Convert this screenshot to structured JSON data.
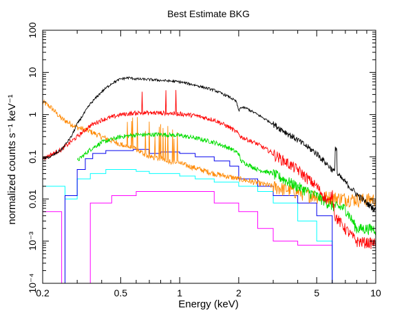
{
  "chart_data": {
    "type": "line",
    "title": "Best Estimate BKG",
    "xlabel": "Energy (keV)",
    "ylabel": "normalized counts s⁻¹ keV⁻¹",
    "xscale": "log",
    "yscale": "log",
    "xlim": [
      0.2,
      10
    ],
    "ylim": [
      0.0001,
      100
    ],
    "grid": false,
    "legend": "none",
    "x_ticks": [
      {
        "value": 0.2,
        "label": "0.2"
      },
      {
        "value": 0.5,
        "label": "0.5"
      },
      {
        "value": 1,
        "label": "1"
      },
      {
        "value": 2,
        "label": "2"
      },
      {
        "value": 5,
        "label": "5"
      },
      {
        "value": 10,
        "label": "10"
      }
    ],
    "y_ticks": [
      {
        "value": 0.0001,
        "label": "10⁻⁴"
      },
      {
        "value": 0.001,
        "label": "10⁻³"
      },
      {
        "value": 0.01,
        "label": "0.01"
      },
      {
        "value": 0.1,
        "label": "0.1"
      },
      {
        "value": 1,
        "label": "1"
      },
      {
        "value": 10,
        "label": "10"
      },
      {
        "value": 100,
        "label": "100"
      }
    ],
    "series": [
      {
        "color": "#000000",
        "style": "noisy",
        "x": [
          0.2,
          0.22,
          0.25,
          0.28,
          0.3,
          0.35,
          0.4,
          0.45,
          0.5,
          0.55,
          0.6,
          0.7,
          0.8,
          1.0,
          1.2,
          1.5,
          1.8,
          1.95,
          2.0,
          2.05,
          2.2,
          2.5,
          3.0,
          4.0,
          5.0,
          6.0,
          6.5,
          7.0,
          8.0,
          9.0,
          10.0
        ],
        "y": [
          0.09,
          0.1,
          0.15,
          0.3,
          0.6,
          1.8,
          3.5,
          5.5,
          7,
          7.5,
          7,
          6.8,
          6.5,
          6,
          5,
          3.8,
          2.6,
          2.0,
          1.2,
          1.5,
          1.4,
          1.0,
          0.6,
          0.25,
          0.12,
          0.05,
          0.035,
          0.025,
          0.013,
          0.008,
          0.0055
        ]
      },
      {
        "color": "#ff0000",
        "style": "noisy",
        "x": [
          0.2,
          0.25,
          0.3,
          0.35,
          0.4,
          0.5,
          0.6,
          0.8,
          1.0,
          1.2,
          1.5,
          1.8,
          2.0,
          2.05,
          2.5,
          3.0,
          4.0,
          5.0,
          5.8,
          6.0,
          6.2,
          7.0,
          8.0,
          10.0
        ],
        "y": [
          0.09,
          0.15,
          0.3,
          0.55,
          0.75,
          1.0,
          1.1,
          1.1,
          1.05,
          0.95,
          0.75,
          0.5,
          0.35,
          0.3,
          0.2,
          0.12,
          0.05,
          0.02,
          0.008,
          0.015,
          0.004,
          0.002,
          0.001,
          0.0009
        ]
      },
      {
        "color": "#00dd00",
        "style": "noisy",
        "x": [
          0.3,
          0.35,
          0.4,
          0.5,
          0.6,
          0.8,
          1.0,
          1.2,
          1.5,
          1.8,
          2.0,
          2.05,
          2.5,
          3.0,
          4.0,
          5.0,
          6.0,
          7.0,
          8.0,
          10.0
        ],
        "y": [
          0.08,
          0.15,
          0.22,
          0.3,
          0.33,
          0.34,
          0.32,
          0.28,
          0.22,
          0.16,
          0.12,
          0.08,
          0.05,
          0.04,
          0.02,
          0.012,
          0.007,
          0.006,
          0.002,
          0.002
        ]
      },
      {
        "color": "#0000ee",
        "style": "step",
        "x": [
          0.2,
          0.25,
          0.26,
          0.3,
          0.33,
          0.36,
          0.42,
          0.5,
          0.58,
          0.7,
          0.8,
          1.0,
          1.2,
          1.5,
          1.8,
          2.0,
          2.5,
          3.0,
          4.0,
          5.0,
          6.0,
          8.0,
          10.0
        ],
        "y": [
          0.0001,
          0.0001,
          0.012,
          0.05,
          0.09,
          0.12,
          0.14,
          0.14,
          0.15,
          0.12,
          0.13,
          0.12,
          0.1,
          0.08,
          0.06,
          0.03,
          0.02,
          0.012,
          0.008,
          0.004,
          0.0001,
          0.0001,
          0.0001
        ]
      },
      {
        "color": "#00ffff",
        "style": "step",
        "x": [
          0.2,
          0.25,
          0.26,
          0.3,
          0.35,
          0.42,
          0.5,
          0.6,
          0.7,
          0.8,
          1.0,
          1.2,
          1.5,
          2.0,
          2.5,
          3.0,
          4.0,
          5.0,
          6.0,
          8.0,
          10.0
        ],
        "y": [
          0.02,
          0.02,
          0.01,
          0.03,
          0.04,
          0.05,
          0.05,
          0.045,
          0.04,
          0.04,
          0.035,
          0.03,
          0.025,
          0.02,
          0.015,
          0.008,
          0.003,
          0.001,
          0.0001,
          0.0001,
          0.0001
        ]
      },
      {
        "color": "#ff00ff",
        "style": "step",
        "x": [
          0.2,
          0.25,
          0.3,
          0.35,
          0.45,
          0.6,
          1.0,
          1.5,
          2.0,
          2.5,
          3.0,
          4.0,
          5.0,
          6.0,
          10.0
        ],
        "y": [
          0.005,
          0.0001,
          0.0001,
          0.008,
          0.012,
          0.015,
          0.015,
          0.008,
          0.005,
          0.002,
          0.001,
          0.0008,
          0.0008,
          0.0001,
          0.0001
        ]
      },
      {
        "color": "#ff8800",
        "style": "noisy",
        "x": [
          0.2,
          0.22,
          0.25,
          0.28,
          0.3,
          0.35,
          0.4,
          0.5,
          0.6,
          0.7,
          0.8,
          1.0,
          1.5,
          2.0,
          3.0,
          4.0,
          5.0,
          6.0,
          8.0,
          10.0
        ],
        "y": [
          2.0,
          1.5,
          0.8,
          0.6,
          0.5,
          0.4,
          0.3,
          0.2,
          0.15,
          0.1,
          0.09,
          0.07,
          0.04,
          0.03,
          0.02,
          0.015,
          0.012,
          0.011,
          0.01,
          0.01
        ]
      }
    ]
  }
}
